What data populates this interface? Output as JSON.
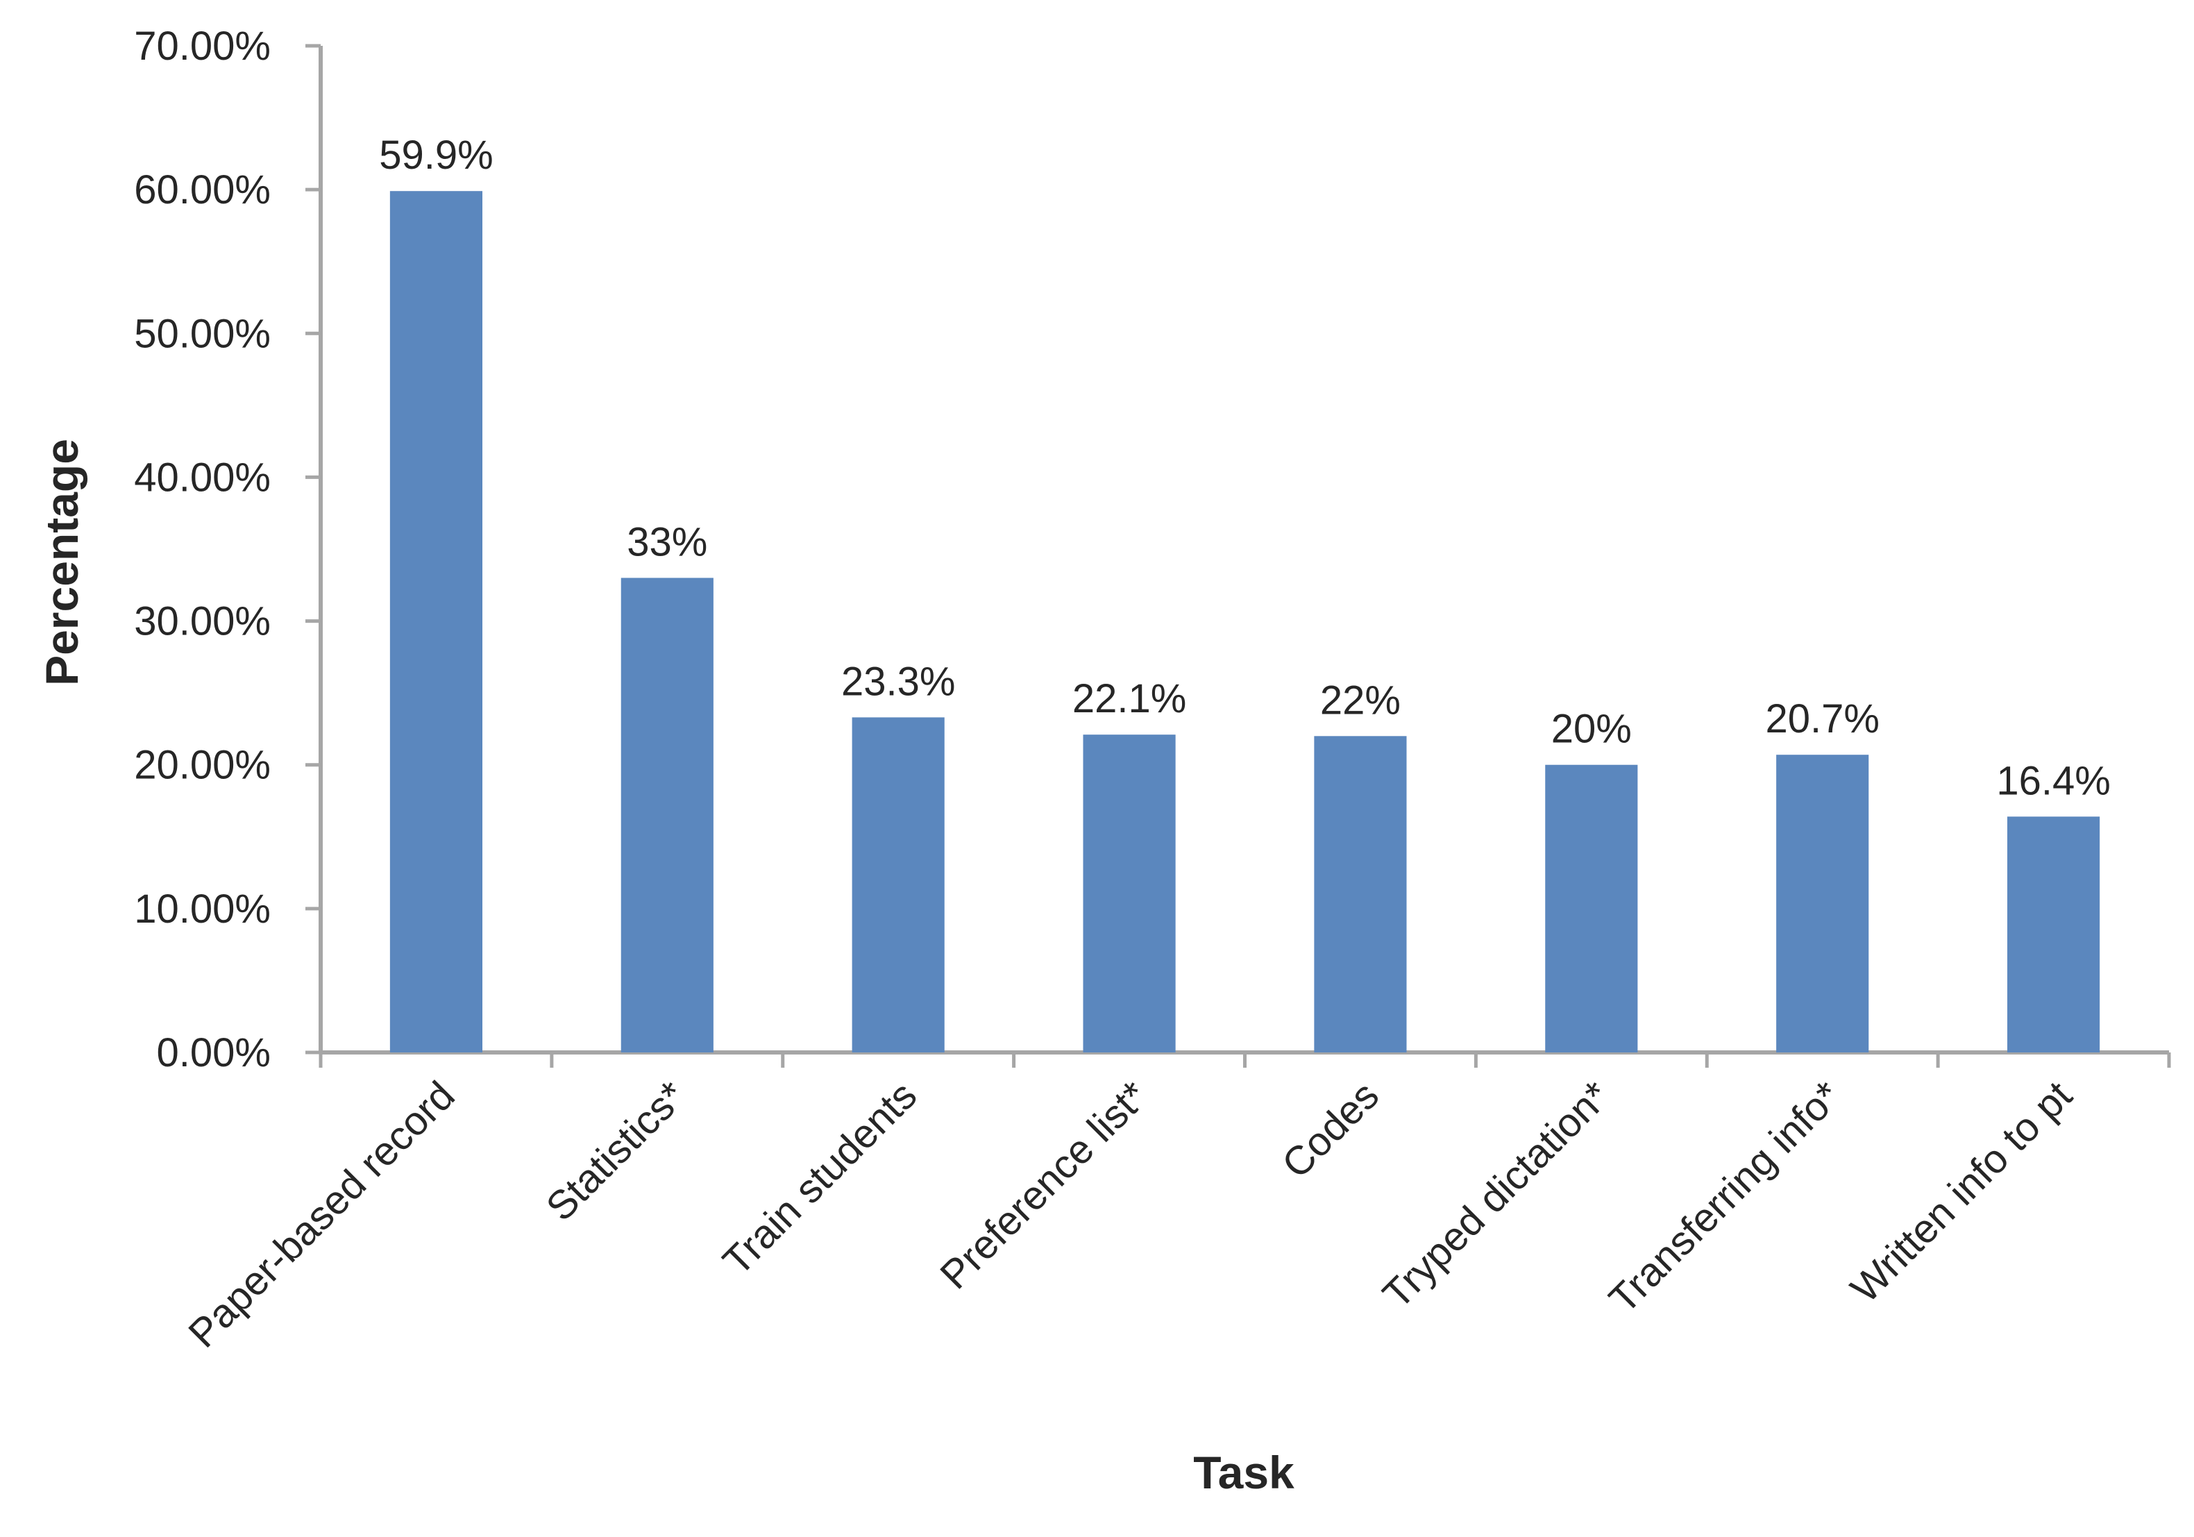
{
  "chart_data": {
    "type": "bar",
    "xlabel": "Task",
    "ylabel": "Percentage",
    "categories": [
      "Paper-based record",
      "Statistics*",
      "Train students",
      "Preference list*",
      "Codes",
      "Tryped dictation*",
      "Transferring info*",
      "Written info to pt"
    ],
    "values": [
      59.9,
      33,
      23.3,
      22.1,
      22,
      20,
      20.7,
      16.4
    ],
    "data_labels": [
      "59.9%",
      "33%",
      "23.3%",
      "22.1%",
      "22%",
      "20%",
      "20.7%",
      "16.4%"
    ],
    "ylim": [
      0,
      70
    ],
    "yticks": [
      0,
      10,
      20,
      30,
      40,
      50,
      60,
      70
    ],
    "ytick_labels": [
      "0.00%",
      "10.00%",
      "20.00%",
      "30.00%",
      "40.00%",
      "50.00%",
      "60.00%",
      "70.00%"
    ],
    "grid": false,
    "legend": "none",
    "colors": {
      "bar": "#5b87be",
      "axis": "#a6a6a6",
      "text": "#262626"
    }
  }
}
